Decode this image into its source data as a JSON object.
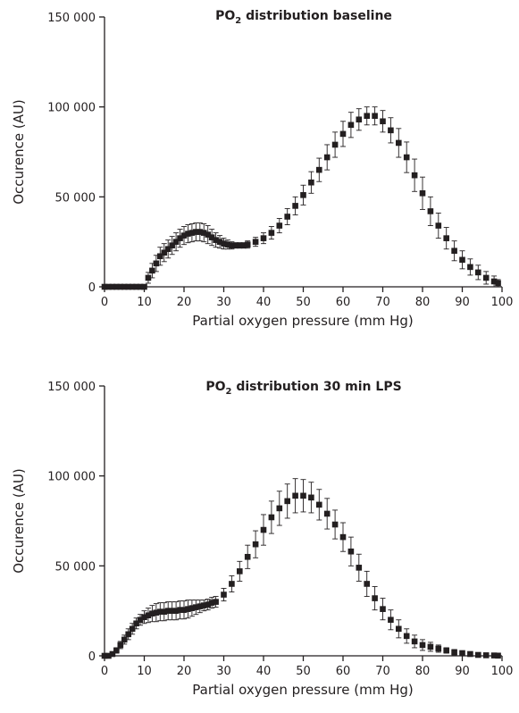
{
  "chart_data": [
    {
      "type": "scatter",
      "title": "PO",
      "title_sub": "2",
      "title_rest": " distribution baseline",
      "xlabel": "Partial oxygen pressure (mm Hg)",
      "ylabel": "Occurence (AU)",
      "xlim": [
        0,
        100
      ],
      "ylim": [
        0,
        150000
      ],
      "xticks": [
        0,
        10,
        20,
        30,
        40,
        50,
        60,
        70,
        80,
        90,
        100
      ],
      "yticks": [
        0,
        50000,
        100000,
        150000
      ],
      "ytick_labels": [
        "0",
        "50 000",
        "100 000",
        "150 000"
      ],
      "grid": false,
      "marker_color": "#231f20",
      "series": [
        {
          "x": [
            0,
            1,
            2,
            3,
            4,
            5,
            6,
            7,
            8,
            9,
            10,
            11,
            12,
            13,
            14,
            15,
            16,
            17,
            18,
            19,
            20,
            21,
            22,
            23,
            24,
            25,
            26,
            27,
            28,
            29,
            30,
            31,
            32,
            33,
            34,
            35,
            36,
            38,
            40,
            42,
            44,
            46,
            48,
            50,
            52,
            54,
            56,
            58,
            60,
            62,
            64,
            66,
            68,
            70,
            72,
            74,
            76,
            78,
            80,
            82,
            84,
            86,
            88,
            90,
            92,
            94,
            96,
            98,
            99
          ],
          "y": [
            0,
            0,
            0,
            0,
            0,
            0,
            0,
            0,
            0,
            0,
            0,
            5000,
            9000,
            13000,
            17000,
            19000,
            21000,
            23000,
            25000,
            27000,
            28500,
            29500,
            30000,
            30500,
            30500,
            30000,
            29000,
            27500,
            26000,
            25000,
            24000,
            23500,
            23000,
            23000,
            23000,
            23000,
            23500,
            25000,
            27000,
            30000,
            34000,
            39000,
            45000,
            51000,
            58000,
            65000,
            72000,
            79000,
            85000,
            90000,
            93000,
            95000,
            95000,
            92000,
            87000,
            80000,
            72000,
            62000,
            52000,
            42000,
            34000,
            27000,
            20000,
            15000,
            11000,
            8000,
            5000,
            3000,
            2000
          ],
          "err": [
            0,
            0,
            0,
            0,
            0,
            0,
            0,
            0,
            0,
            0,
            0,
            3000,
            4000,
            4500,
            5000,
            5000,
            5000,
            5000,
            5000,
            5000,
            5000,
            5000,
            5000,
            5000,
            5000,
            5000,
            5000,
            4500,
            4000,
            3500,
            3000,
            2500,
            2000,
            1500,
            1500,
            1500,
            2000,
            2500,
            3000,
            3500,
            4000,
            4500,
            5000,
            5500,
            6000,
            6500,
            7000,
            7000,
            7000,
            7000,
            6000,
            5000,
            5000,
            6000,
            7000,
            8000,
            8500,
            9000,
            9000,
            8000,
            7000,
            6000,
            5500,
            5000,
            4500,
            4000,
            3500,
            3000,
            2000
          ]
        }
      ]
    },
    {
      "type": "scatter",
      "title": "PO",
      "title_sub": "2",
      "title_rest": " distribution 30 min LPS",
      "xlabel": "Partial oxygen pressure (mm Hg)",
      "ylabel": "Occurence (AU)",
      "xlim": [
        0,
        100
      ],
      "ylim": [
        0,
        150000
      ],
      "xticks": [
        0,
        10,
        20,
        30,
        40,
        50,
        60,
        70,
        80,
        90,
        100
      ],
      "yticks": [
        0,
        50000,
        100000,
        150000
      ],
      "ytick_labels": [
        "0",
        "50 000",
        "100 000",
        "150 000"
      ],
      "grid": false,
      "marker_color": "#231f20",
      "series": [
        {
          "x": [
            0,
            1,
            2,
            3,
            4,
            5,
            6,
            7,
            8,
            9,
            10,
            11,
            12,
            13,
            14,
            15,
            16,
            17,
            18,
            19,
            20,
            21,
            22,
            23,
            24,
            25,
            26,
            27,
            28,
            30,
            32,
            34,
            36,
            38,
            40,
            42,
            44,
            46,
            48,
            50,
            52,
            54,
            56,
            58,
            60,
            62,
            64,
            66,
            68,
            70,
            72,
            74,
            76,
            78,
            80,
            82,
            84,
            86,
            88,
            90,
            92,
            94,
            96,
            98,
            99
          ],
          "y": [
            0,
            0,
            1000,
            3000,
            6000,
            9000,
            12000,
            15000,
            18000,
            20000,
            21500,
            22500,
            23500,
            24000,
            24500,
            24500,
            25000,
            25000,
            25000,
            25500,
            25500,
            26000,
            26500,
            27000,
            27500,
            28000,
            28500,
            29500,
            30000,
            34000,
            40000,
            47000,
            55000,
            62000,
            70000,
            77000,
            82000,
            86000,
            89000,
            89000,
            88000,
            84000,
            79000,
            73000,
            66000,
            58000,
            49000,
            40000,
            32000,
            26000,
            20000,
            15000,
            11000,
            8000,
            6000,
            5000,
            4000,
            3000,
            2000,
            1500,
            1000,
            500,
            300,
            200,
            100
          ],
          "err": [
            0,
            0,
            1000,
            1500,
            2000,
            2500,
            3000,
            3000,
            3000,
            3000,
            3500,
            4000,
            4500,
            5000,
            5000,
            5000,
            5000,
            5000,
            5000,
            5000,
            5000,
            5000,
            4500,
            4000,
            3500,
            3000,
            3000,
            3000,
            3000,
            3500,
            4500,
            5500,
            6500,
            7500,
            8500,
            9000,
            9500,
            9500,
            9500,
            9000,
            8500,
            8500,
            8500,
            8000,
            8000,
            8000,
            7500,
            7000,
            6500,
            6000,
            5500,
            5000,
            4000,
            3500,
            3000,
            2500,
            2000,
            1500,
            1500,
            1000,
            1000,
            500,
            500,
            300,
            200
          ]
        }
      ]
    }
  ]
}
